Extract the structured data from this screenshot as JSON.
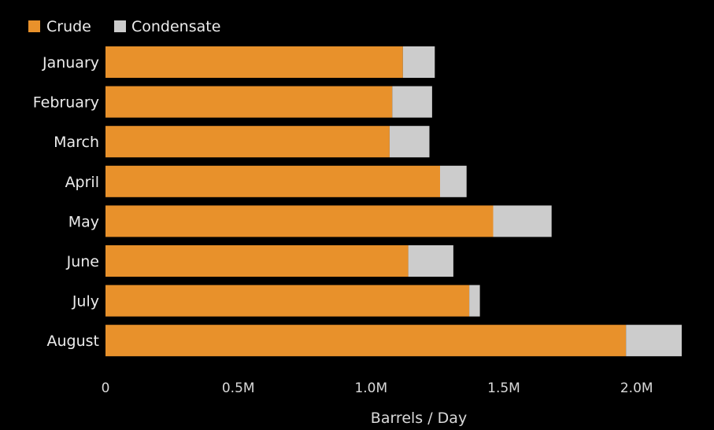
{
  "chart_data": {
    "type": "bar",
    "orientation": "horizontal",
    "stacked": true,
    "categories": [
      "January",
      "February",
      "March",
      "April",
      "May",
      "June",
      "July",
      "August"
    ],
    "series": [
      {
        "name": "Crude",
        "color": "#e8912b",
        "values": [
          1120000,
          1080000,
          1070000,
          1260000,
          1460000,
          1140000,
          1370000,
          1960000
        ]
      },
      {
        "name": "Condensate",
        "color": "#cccccc",
        "values": [
          120000,
          150000,
          150000,
          100000,
          220000,
          170000,
          40000,
          210000
        ]
      }
    ],
    "xlabel": "Barrels / Day",
    "xlim": [
      0,
      2170000
    ],
    "xticks": [
      {
        "value": 0,
        "label": "0"
      },
      {
        "value": 500000,
        "label": "0.5M"
      },
      {
        "value": 1000000,
        "label": "1.0M"
      },
      {
        "value": 1500000,
        "label": "1.5M"
      },
      {
        "value": 2000000,
        "label": "2.0M"
      }
    ],
    "legend_position": "top-left",
    "grid": false
  }
}
